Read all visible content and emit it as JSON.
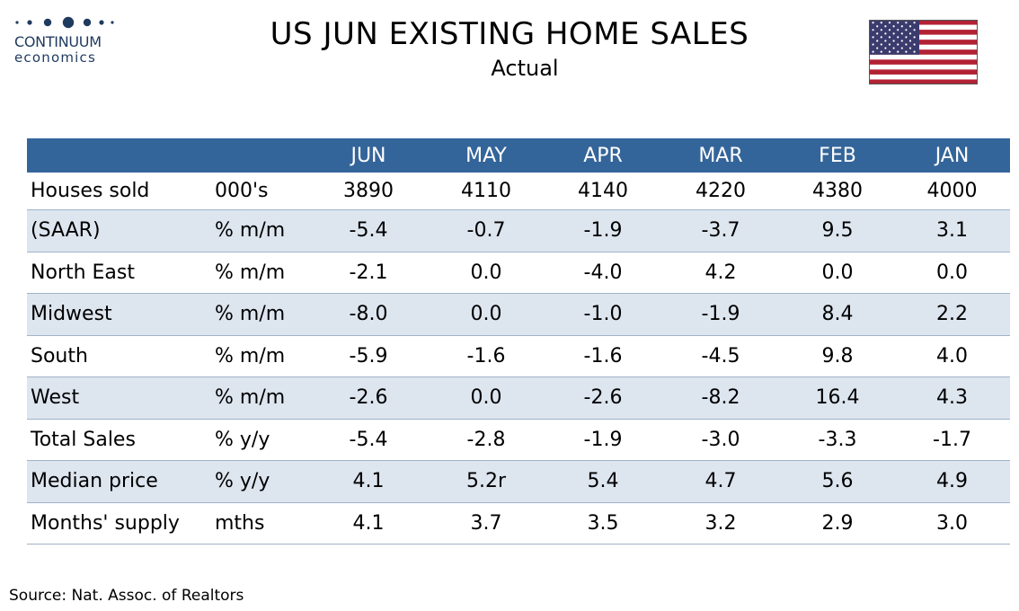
{
  "logo": {
    "line1": "CONTINUUM",
    "line2": "economics"
  },
  "header": {
    "title": "US JUN EXISTING HOME SALES",
    "subtitle": "Actual",
    "flag_icon": "us-flag-icon"
  },
  "colors": {
    "header_blue": "#34659a",
    "shaded_row": "#dde5ef",
    "flag_red": "#b22234",
    "flag_blue": "#3c3b6e",
    "logo_navy": "#1f3a5f"
  },
  "table": {
    "columns": [
      "",
      "",
      "JUN",
      "MAY",
      "APR",
      "MAR",
      "FEB",
      "JAN"
    ],
    "rows": [
      {
        "label": "Houses sold",
        "unit": "000's",
        "values": [
          "3890",
          "4110",
          "4140",
          "4220",
          "4380",
          "4000"
        ]
      },
      {
        "label": "(SAAR)",
        "unit": "% m/m",
        "values": [
          "-5.4",
          "-0.7",
          "-1.9",
          "-3.7",
          "9.5",
          "3.1"
        ]
      },
      {
        "label": "North East",
        "unit": "% m/m",
        "values": [
          "-2.1",
          "0.0",
          "-4.0",
          "4.2",
          "0.0",
          "0.0"
        ]
      },
      {
        "label": "Midwest",
        "unit": "% m/m",
        "values": [
          "-8.0",
          "0.0",
          "-1.0",
          "-1.9",
          "8.4",
          "2.2"
        ]
      },
      {
        "label": "South",
        "unit": "% m/m",
        "values": [
          "-5.9",
          "-1.6",
          "-1.6",
          "-4.5",
          "9.8",
          "4.0"
        ]
      },
      {
        "label": "West",
        "unit": "% m/m",
        "values": [
          "-2.6",
          "0.0",
          "-2.6",
          "-8.2",
          "16.4",
          "4.3"
        ]
      },
      {
        "label": "Total Sales",
        "unit": "% y/y",
        "values": [
          "-5.4",
          "-2.8",
          "-1.9",
          "-3.0",
          "-3.3",
          "-1.7"
        ]
      },
      {
        "label": "Median price",
        "unit": "% y/y",
        "values": [
          "4.1",
          "5.2r",
          "5.4",
          "4.7",
          "5.6",
          "4.9"
        ]
      },
      {
        "label": "Months' supply",
        "unit": "mths",
        "values": [
          "4.1",
          "3.7",
          "3.5",
          "3.2",
          "2.9",
          "3.0"
        ]
      }
    ]
  },
  "footer": {
    "source": "Source: Nat. Assoc. of Realtors"
  }
}
